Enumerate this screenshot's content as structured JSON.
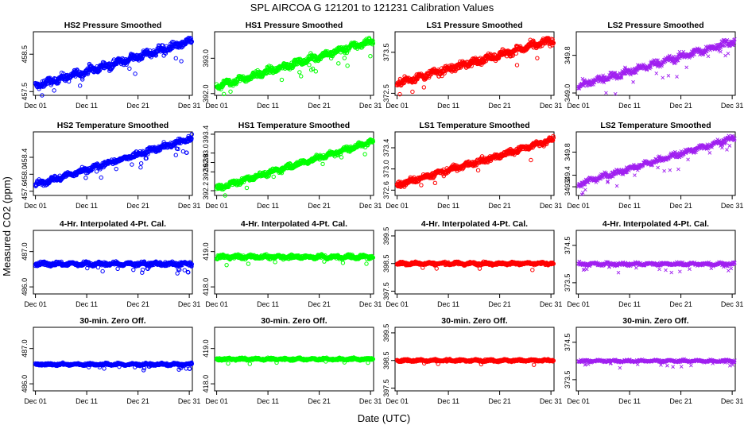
{
  "page": {
    "title": "SPL   AIRCOA G   121201 to 121231   Calibration Values",
    "xlabel": "Date (UTC)",
    "ylabel": "Measured CO2 (ppm)"
  },
  "chart_data": {
    "type": "scatter",
    "x_ticks": [
      {
        "day": 1,
        "label": "Dec 01"
      },
      {
        "day": 11,
        "label": "Dec 11"
      },
      {
        "day": 21,
        "label": "Dec 21"
      },
      {
        "day": 31,
        "label": "Dec 31"
      }
    ],
    "xlim": [
      0.6,
      31.6
    ],
    "colors": {
      "HS2": "#0000ff",
      "HS1": "#00ff00",
      "LS1": "#ff0000",
      "LS2": "#a020f0"
    },
    "panels": [
      {
        "title": "HS2 Pressure Smoothed",
        "series": "HS2",
        "ylim": [
          457.4,
          459.1
        ],
        "yticks": [
          "457.5",
          "458.5"
        ],
        "trend": [
          457.65,
          458.85
        ],
        "noise": 0.09,
        "marker": "circle"
      },
      {
        "title": "HS1 Pressure Smoothed",
        "series": "HS1",
        "ylim": [
          391.95,
          393.75
        ],
        "yticks": [
          "392.0",
          "393.0"
        ],
        "trend": [
          392.2,
          393.5
        ],
        "noise": 0.09,
        "marker": "circle"
      },
      {
        "title": "LS1 Pressure Smoothed",
        "series": "LS1",
        "ylim": [
          372.45,
          374.0
        ],
        "yticks": [
          "372.5",
          "373.5"
        ],
        "trend": [
          372.75,
          373.8
        ],
        "noise": 0.08,
        "marker": "circle"
      },
      {
        "title": "LS2 Pressure Smoothed",
        "series": "LS2",
        "ylim": [
          348.95,
          350.3
        ],
        "yticks": [
          "349.0",
          "349.8"
        ],
        "trend": [
          349.15,
          350.1
        ],
        "noise": 0.07,
        "marker": "cross"
      },
      {
        "title": "HS2 Temperature Smoothed",
        "series": "HS2",
        "ylim": [
          457.5,
          459.0
        ],
        "yticks": [
          "457.6",
          "458.0",
          "458.4"
        ],
        "trend": [
          457.75,
          458.85
        ],
        "noise": 0.06,
        "marker": "circle"
      },
      {
        "title": "HS1 Temperature Smoothed",
        "series": "HS1",
        "ylim": [
          392.1,
          393.45
        ],
        "yticks": [
          "392.2",
          "392.6",
          "392.8",
          "393.0",
          "393.4"
        ],
        "trend": [
          392.25,
          393.25
        ],
        "noise": 0.05,
        "marker": "circle"
      },
      {
        "title": "LS1 Temperature Smoothed",
        "series": "LS1",
        "ylim": [
          372.5,
          373.7
        ],
        "yticks": [
          "372.6",
          "373.0",
          "373.4"
        ],
        "trend": [
          372.7,
          373.55
        ],
        "noise": 0.05,
        "marker": "circle"
      },
      {
        "title": "LS2 Temperature Smoothed",
        "series": "LS2",
        "ylim": [
          349.05,
          350.15
        ],
        "yticks": [
          "349.2",
          "349.4",
          "349.8"
        ],
        "trend": [
          349.25,
          350.05
        ],
        "noise": 0.045,
        "marker": "cross"
      },
      {
        "title": "4-Hr. Interpolated 4-Pt. Cal.",
        "series": "HS2",
        "ylim": [
          485.8,
          487.6
        ],
        "yticks": [
          "486.0",
          "487.0"
        ],
        "trend": [
          486.65,
          486.65
        ],
        "noise": 0.05,
        "marker": "circle"
      },
      {
        "title": "4-Hr. Interpolated 4-Pt. Cal.",
        "series": "HS1",
        "ylim": [
          417.8,
          419.6
        ],
        "yticks": [
          "418.0",
          "419.0"
        ],
        "trend": [
          418.85,
          418.85
        ],
        "noise": 0.05,
        "marker": "circle"
      },
      {
        "title": "4-Hr. Interpolated 4-Pt. Cal.",
        "series": "LS1",
        "ylim": [
          397.4,
          399.7
        ],
        "yticks": [
          "397.5",
          "398.5",
          "399.5"
        ],
        "trend": [
          398.5,
          398.5
        ],
        "noise": 0.045,
        "marker": "circle"
      },
      {
        "title": "4-Hr. Interpolated 4-Pt. Cal.",
        "series": "LS2",
        "ylim": [
          373.2,
          374.9
        ],
        "yticks": [
          "373.5",
          "374.5"
        ],
        "trend": [
          374.0,
          374.0
        ],
        "noise": 0.04,
        "marker": "cross"
      },
      {
        "title": "30-min. Zero Off.",
        "series": "HS2",
        "ylim": [
          485.8,
          487.6
        ],
        "yticks": [
          "486.0",
          "487.0"
        ],
        "trend": [
          486.55,
          486.55
        ],
        "noise": 0.03,
        "marker": "circle"
      },
      {
        "title": "30-min. Zero Off.",
        "series": "HS1",
        "ylim": [
          417.8,
          419.6
        ],
        "yticks": [
          "418.0",
          "419.0"
        ],
        "trend": [
          418.7,
          418.7
        ],
        "noise": 0.03,
        "marker": "circle"
      },
      {
        "title": "30-min. Zero Off.",
        "series": "LS1",
        "ylim": [
          397.4,
          399.7
        ],
        "yticks": [
          "397.5",
          "398.5",
          "399.5"
        ],
        "trend": [
          398.5,
          398.5
        ],
        "noise": 0.035,
        "marker": "circle"
      },
      {
        "title": "30-min. Zero Off.",
        "series": "LS2",
        "ylim": [
          373.2,
          374.9
        ],
        "yticks": [
          "373.5",
          "374.5"
        ],
        "trend": [
          374.0,
          374.0
        ],
        "noise": 0.03,
        "marker": "cross"
      }
    ]
  }
}
